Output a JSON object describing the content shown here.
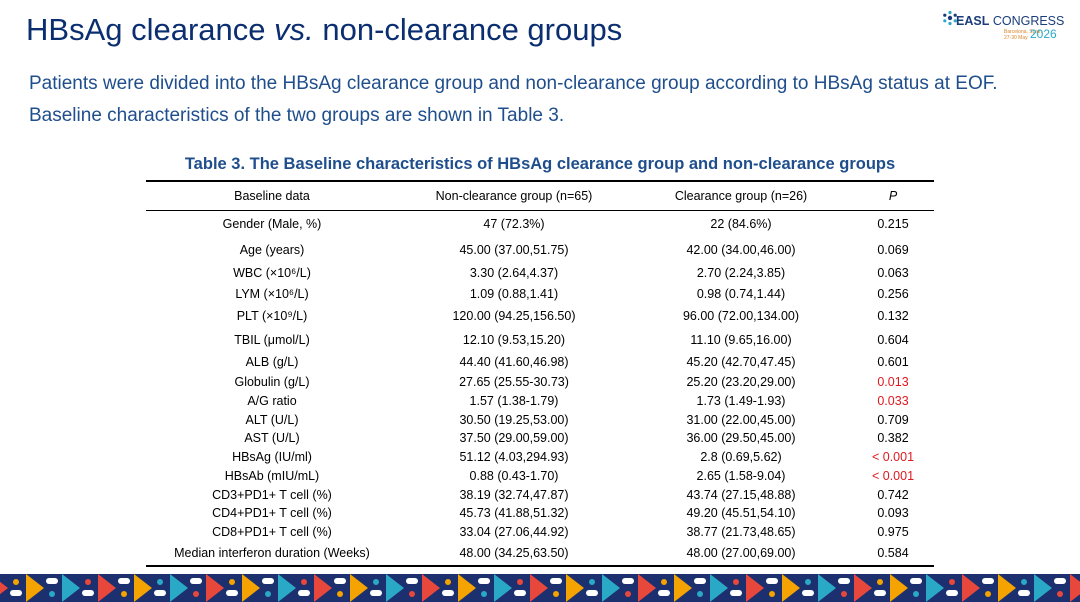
{
  "title": {
    "part1": "HBsAg clearance ",
    "italic": "vs.",
    "part2": " non-clearance groups"
  },
  "logo": {
    "brand": "EASL",
    "name": " CONGRESS",
    "location": "Barcelona, Spain",
    "dates": "27-30 May",
    "year": "2026",
    "mark_icon": "easl-snowflake-icon"
  },
  "intro": "Patients were divided into the HBsAg clearance group and non-clearance group according to HBsAg status at EOF. Baseline characteristics of the two groups are shown in Table 3.",
  "table": {
    "caption": "Table 3. The Baseline characteristics of HBsAg clearance group and non-clearance groups",
    "headers": [
      "Baseline data",
      "Non-clearance group (n=65)",
      "Clearance group (n=26)",
      "P"
    ],
    "rows": [
      {
        "label": "Gender (Male, %)",
        "non": "47 (72.3%)",
        "cl": "22 (84.6%)",
        "p": "0.215",
        "sig": false
      },
      {
        "label": "Age (years)",
        "non": "45.00 (37.00,51.75)",
        "cl": "42.00 (34.00,46.00)",
        "p": "0.069",
        "sig": false
      },
      {
        "label": "WBC (×10⁶/L)",
        "non": "3.30 (2.64,4.37)",
        "cl": "2.70 (2.24,3.85)",
        "p": "0.063",
        "sig": false
      },
      {
        "label": "LYM (×10⁶/L)",
        "non": "1.09 (0.88,1.41)",
        "cl": "0.98 (0.74,1.44)",
        "p": "0.256",
        "sig": false
      },
      {
        "label": "PLT (×10⁹/L)",
        "non": "120.00 (94.25,156.50)",
        "cl": "96.00 (72.00,134.00)",
        "p": "0.132",
        "sig": false
      },
      {
        "label": "TBIL (μmol/L)",
        "non": "12.10 (9.53,15.20)",
        "cl": "11.10 (9.65,16.00)",
        "p": "0.604",
        "sig": false
      },
      {
        "label": "ALB (g/L)",
        "non": "44.40 (41.60,46.98)",
        "cl": "45.20 (42.70,47.45)",
        "p": "0.601",
        "sig": false
      },
      {
        "label": "Globulin (g/L)",
        "non": "27.65 (25.55-30.73)",
        "cl": "25.20 (23.20,29.00)",
        "p": "0.013",
        "sig": true
      },
      {
        "label": "A/G ratio",
        "non": "1.57 (1.38-1.79)",
        "cl": "1.73 (1.49-1.93)",
        "p": "0.033",
        "sig": true
      },
      {
        "label": "ALT (U/L)",
        "non": "30.50 (19.25,53.00)",
        "cl": "31.00 (22.00,45.00)",
        "p": "0.709",
        "sig": false
      },
      {
        "label": "AST (U/L)",
        "non": "37.50 (29.00,59.00)",
        "cl": "36.00 (29.50,45.00)",
        "p": "0.382",
        "sig": false
      },
      {
        "label": "HBsAg (IU/ml)",
        "non": "51.12 (4.03,294.93)",
        "cl": "2.8 (0.69,5.62)",
        "p": "< 0.001",
        "sig": true
      },
      {
        "label": "HBsAb (mIU/mL)",
        "non": "0.88 (0.43-1.70)",
        "cl": "2.65 (1.58-9.04)",
        "p": "< 0.001",
        "sig": true
      },
      {
        "label": "CD3+PD1+ T cell (%)",
        "non": "38.19 (32.74,47.87)",
        "cl": "43.74 (27.15,48.88)",
        "p": "0.742",
        "sig": false
      },
      {
        "label": "CD4+PD1+ T cell (%)",
        "non": "45.73 (41.88,51.32)",
        "cl": "49.20 (45.51,54.10)",
        "p": "0.093",
        "sig": false
      },
      {
        "label": "CD8+PD1+ T cell (%)",
        "non": "33.04 (27.06,44.92)",
        "cl": "38.77 (21.73,48.65)",
        "p": "0.975",
        "sig": false
      },
      {
        "label": "Median interferon duration (Weeks)",
        "non": "48.00 (34.25,63.50)",
        "cl": "48.00 (27.00,69.00)",
        "p": "0.584",
        "sig": false
      }
    ]
  },
  "colors": {
    "title": "#0b2e70",
    "text_blue": "#1f4e8c",
    "significant": "#e0191e",
    "stripe": [
      "#1c2f6e",
      "#e8473c",
      "#f4a300",
      "#2aa9c7",
      "#ffffff"
    ]
  }
}
